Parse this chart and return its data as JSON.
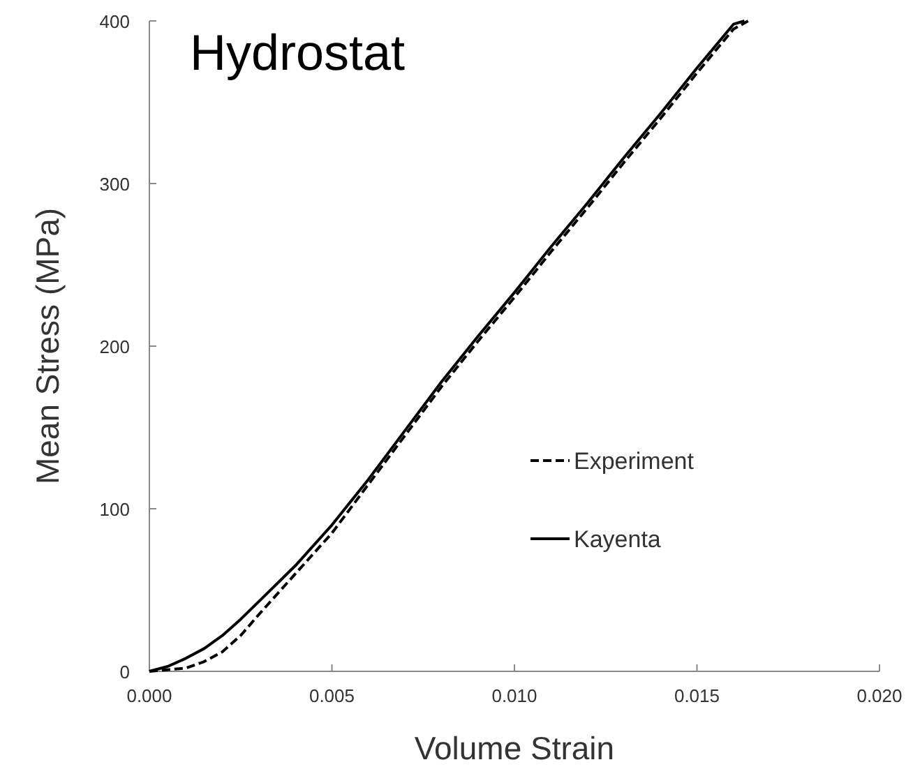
{
  "chart_data": {
    "type": "line",
    "title": "Hydrostat",
    "xlabel": "Volume Strain",
    "ylabel": "Mean Stress (MPa)",
    "xlim": [
      0,
      0.02
    ],
    "ylim": [
      0,
      400
    ],
    "xticks": [
      {
        "value": 0,
        "label": "0.000"
      },
      {
        "value": 0.005,
        "label": "0.005"
      },
      {
        "value": 0.01,
        "label": "0.010"
      },
      {
        "value": 0.015,
        "label": "0.015"
      },
      {
        "value": 0.02,
        "label": "0.020"
      }
    ],
    "yticks": [
      0,
      100,
      200,
      300,
      400
    ],
    "grid": false,
    "legend": "bottom right",
    "marker": "none",
    "series": [
      {
        "name": "Experiment",
        "color": "#000000",
        "line_style": "dashed",
        "x": [
          0,
          0.0005,
          0.001,
          0.0015,
          0.002,
          0.0025,
          0.003,
          0.004,
          0.005,
          0.006,
          0.007,
          0.008,
          0.009,
          0.01,
          0.011,
          0.012,
          0.013,
          0.014,
          0.015,
          0.016,
          0.0164
        ],
        "values": [
          0,
          1,
          2,
          6,
          12,
          22,
          35,
          60,
          85,
          115,
          145,
          175,
          203,
          230,
          258,
          285,
          313,
          340,
          368,
          395,
          400
        ]
      },
      {
        "name": "Kayenta",
        "color": "#000000",
        "line_style": "solid",
        "x": [
          0,
          0.0005,
          0.001,
          0.0015,
          0.002,
          0.0025,
          0.003,
          0.004,
          0.005,
          0.006,
          0.007,
          0.008,
          0.009,
          0.01,
          0.011,
          0.012,
          0.013,
          0.014,
          0.015,
          0.016,
          0.0163
        ],
        "values": [
          0,
          3,
          8,
          14,
          22,
          32,
          43,
          65,
          90,
          118,
          148,
          178,
          206,
          233,
          261,
          288,
          316,
          343,
          371,
          398,
          400
        ]
      }
    ]
  }
}
